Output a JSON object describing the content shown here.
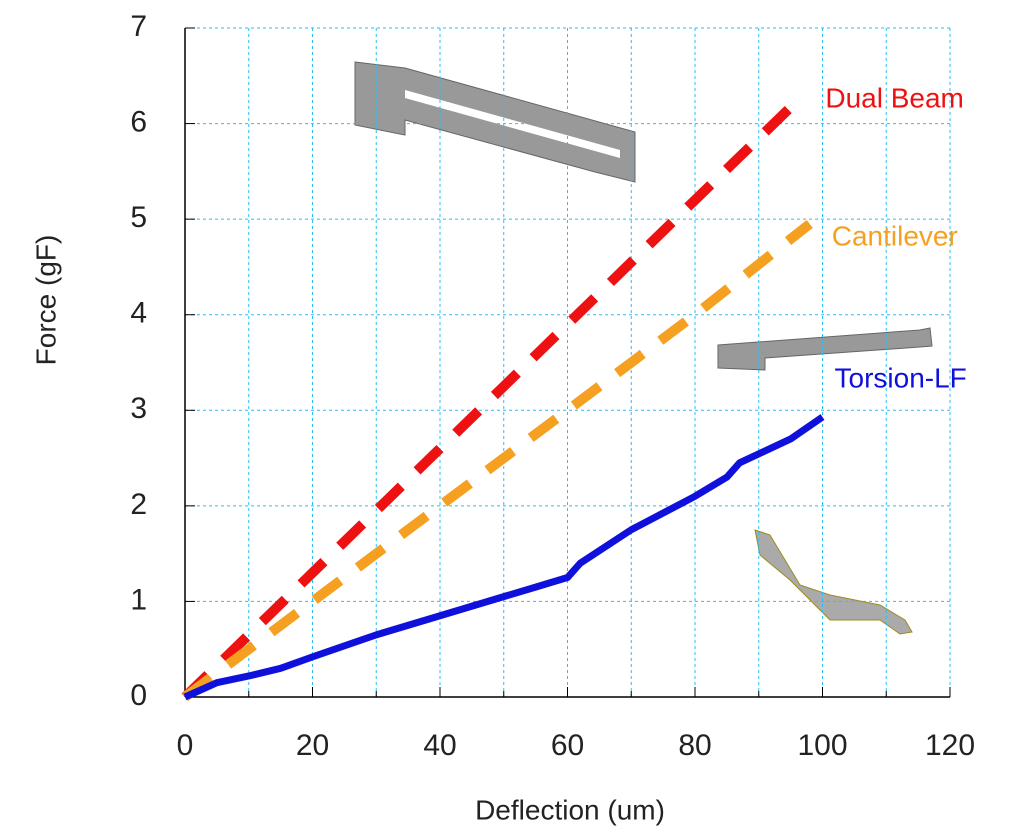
{
  "chart_data": {
    "type": "line",
    "x_label": "Deflection (um)",
    "y_label": "Force (gF)",
    "xlim": [
      0,
      120
    ],
    "ylim": [
      0,
      7
    ],
    "xticks": [
      0,
      20,
      40,
      60,
      80,
      100,
      120
    ],
    "xminorticks": [
      10,
      30,
      50,
      70,
      90,
      110
    ],
    "yticks": [
      0,
      1,
      2,
      3,
      4,
      5,
      6,
      7
    ],
    "grid": true,
    "series": [
      {
        "name": "Dual Beam",
        "color": "#ee1111",
        "style": "dashed",
        "x": [
          0,
          20,
          40,
          60,
          80,
          97
        ],
        "y": [
          0,
          1.3,
          2.6,
          3.9,
          5.2,
          6.3
        ]
      },
      {
        "name": "Cantilever",
        "color": "#f5a020",
        "style": "dashed",
        "x": [
          0,
          20,
          40,
          60,
          80,
          98
        ],
        "y": [
          0,
          1,
          2,
          3,
          4,
          4.95
        ]
      },
      {
        "name": "Torsion-LF",
        "color": "#1010dd",
        "style": "solid",
        "x": [
          0,
          5,
          10,
          15,
          20,
          30,
          40,
          50,
          55,
          60,
          62,
          70,
          80,
          85,
          87,
          95,
          100
        ],
        "y": [
          0,
          0.15,
          0.22,
          0.3,
          0.42,
          0.65,
          0.85,
          1.05,
          1.15,
          1.25,
          1.4,
          1.75,
          2.1,
          2.3,
          2.45,
          2.7,
          2.93
        ]
      }
    ]
  }
}
